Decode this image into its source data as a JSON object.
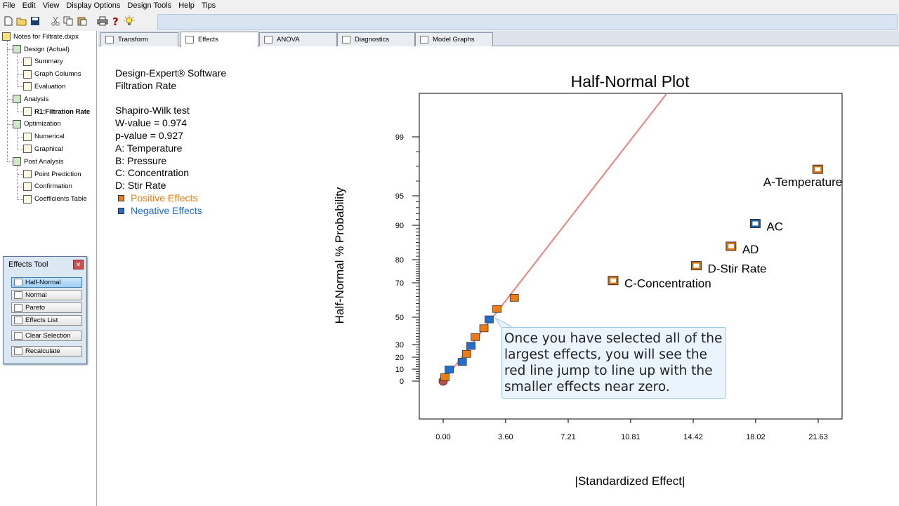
{
  "menubar": [
    "File",
    "Edit",
    "View",
    "Display Options",
    "Design Tools",
    "Help",
    "Tips"
  ],
  "tree": {
    "root": "Notes for Filtrate.dxpx",
    "items": [
      {
        "label": "Design (Actual)",
        "level": 1
      },
      {
        "label": "Summary",
        "level": 2
      },
      {
        "label": "Graph Columns",
        "level": 2
      },
      {
        "label": "Evaluation",
        "level": 2
      },
      {
        "label": "Analysis",
        "level": 1
      },
      {
        "label": "R1:Filtration Rate",
        "level": 2
      },
      {
        "label": "Optimization",
        "level": 1
      },
      {
        "label": "Numerical",
        "level": 2
      },
      {
        "label": "Graphical",
        "level": 2
      },
      {
        "label": "Post Analysis",
        "level": 1
      },
      {
        "label": "Point Prediction",
        "level": 2
      },
      {
        "label": "Confirmation",
        "level": 2
      },
      {
        "label": "Coefficients Table",
        "level": 2
      }
    ]
  },
  "tabs": [
    "Transform",
    "Effects",
    "ANOVA",
    "Diagnostics",
    "Model Graphs"
  ],
  "active_tab": "Effects",
  "notes": {
    "software": "Design-Expert® Software",
    "response": "Filtration Rate",
    "test": "Shapiro-Wilk test",
    "w_value": "W-value = 0.974",
    "p_value": "p-value = 0.927",
    "factors": [
      "A: Temperature",
      "B: Pressure",
      "C: Concentration",
      "D: Stir Rate"
    ],
    "positive_label": "Positive Effects",
    "negative_label": "Negative Effects"
  },
  "effects_tool": {
    "title": "Effects Tool",
    "buttons": [
      "Half-Normal",
      "Normal",
      "Pareto",
      "Effects List",
      "Clear Selection",
      "Recalculate"
    ]
  },
  "callout": "Once you have selected all of the largest effects, you will see the red line jump to line up with the smaller effects near zero.",
  "colors": {
    "positive": "#f07c0f",
    "negative": "#1e6fcf",
    "line": "#f08080",
    "selected_positive": "#d97008",
    "selected_negative": "#1a5fa8"
  },
  "chart_data": {
    "type": "scatter",
    "title": "Half-Normal Plot",
    "xlabel": "|Standardized Effect|",
    "ylabel": "Half-Normal % Probability",
    "x_ticks": [
      "0.00",
      "3.60",
      "7.21",
      "10.81",
      "14.42",
      "18.02",
      "21.63"
    ],
    "x_tick_values": [
      0,
      3.6,
      7.21,
      10.81,
      14.42,
      18.02,
      21.63
    ],
    "y_ticks": [
      "0",
      "10",
      "20",
      "30",
      "50",
      "70",
      "80",
      "90",
      "95",
      "99"
    ],
    "y_tick_values": [
      0,
      10,
      20,
      30,
      50,
      70,
      80,
      90,
      95,
      99
    ],
    "xlim": [
      -1.4,
      23.0
    ],
    "points": [
      {
        "x": 0.0,
        "y": 0.0,
        "sign": "zero",
        "label": ""
      },
      {
        "x": 0.1,
        "y": 3.2,
        "sign": "positive",
        "label": ""
      },
      {
        "x": 0.35,
        "y": 9.7,
        "sign": "negative",
        "label": ""
      },
      {
        "x": 1.1,
        "y": 16.1,
        "sign": "negative",
        "label": ""
      },
      {
        "x": 1.35,
        "y": 22.6,
        "sign": "positive",
        "label": ""
      },
      {
        "x": 1.6,
        "y": 29.0,
        "sign": "negative",
        "label": ""
      },
      {
        "x": 1.85,
        "y": 35.5,
        "sign": "positive",
        "label": ""
      },
      {
        "x": 2.35,
        "y": 41.9,
        "sign": "positive",
        "label": ""
      },
      {
        "x": 2.65,
        "y": 48.4,
        "sign": "negative",
        "label": ""
      },
      {
        "x": 3.1,
        "y": 54.8,
        "sign": "positive",
        "label": ""
      },
      {
        "x": 4.1,
        "y": 61.3,
        "sign": "positive",
        "label": ""
      },
      {
        "x": 9.8,
        "y": 71.0,
        "sign": "positive",
        "selected": true,
        "label": "C-Concentration"
      },
      {
        "x": 14.6,
        "y": 77.4,
        "sign": "positive",
        "selected": true,
        "label": "D-Stir Rate"
      },
      {
        "x": 16.6,
        "y": 83.9,
        "sign": "positive",
        "selected": true,
        "label": "AD"
      },
      {
        "x": 18.0,
        "y": 90.3,
        "sign": "negative",
        "selected": true,
        "label": "AC"
      },
      {
        "x": 21.6,
        "y": 96.8,
        "sign": "positive",
        "selected": true,
        "label": "A-Temperature"
      }
    ],
    "fit_line": {
      "x": [
        0.0,
        12.9
      ],
      "y": [
        0.0,
        99.8
      ]
    }
  }
}
